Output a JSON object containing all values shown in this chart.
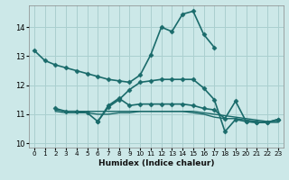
{
  "title": "",
  "xlabel": "Humidex (Indice chaleur)",
  "bg_color": "#cce8e8",
  "grid_color": "#aacfcf",
  "line_color": "#1a6b6b",
  "xlim": [
    -0.5,
    23.5
  ],
  "ylim": [
    9.85,
    14.75
  ],
  "yticks": [
    10,
    11,
    12,
    13,
    14
  ],
  "xticks": [
    0,
    1,
    2,
    3,
    4,
    5,
    6,
    7,
    8,
    9,
    10,
    11,
    12,
    13,
    14,
    15,
    16,
    17,
    18,
    19,
    20,
    21,
    22,
    23
  ],
  "series": [
    {
      "x": [
        0,
        1,
        2,
        3,
        4,
        5,
        6,
        7,
        8,
        9,
        10,
        11,
        12,
        13,
        14,
        15,
        16,
        17
      ],
      "y": [
        13.2,
        12.85,
        12.7,
        12.6,
        12.5,
        12.4,
        12.3,
        12.2,
        12.15,
        12.1,
        12.35,
        13.05,
        14.0,
        13.85,
        14.45,
        14.55,
        13.75,
        13.3
      ],
      "marker": "D",
      "markersize": 2.5,
      "linewidth": 1.2
    },
    {
      "x": [
        2,
        3,
        4,
        5,
        6,
        7,
        8,
        9,
        10,
        11,
        12,
        13,
        14,
        15,
        16,
        17,
        18,
        19,
        20,
        21,
        22,
        23
      ],
      "y": [
        11.15,
        11.1,
        11.1,
        11.1,
        11.1,
        11.1,
        11.1,
        11.1,
        11.1,
        11.1,
        11.1,
        11.1,
        11.1,
        11.1,
        11.05,
        11.0,
        10.95,
        10.9,
        10.85,
        10.8,
        10.75,
        10.75
      ],
      "marker": null,
      "markersize": 0,
      "linewidth": 1.0
    },
    {
      "x": [
        2,
        3,
        4,
        5,
        6,
        7,
        8,
        9,
        10,
        11,
        12,
        13,
        14,
        15,
        16,
        17,
        18,
        19,
        20,
        21,
        22,
        23
      ],
      "y": [
        11.1,
        11.05,
        11.05,
        11.05,
        11.0,
        11.0,
        11.05,
        11.05,
        11.1,
        11.1,
        11.1,
        11.1,
        11.1,
        11.05,
        11.0,
        10.9,
        10.85,
        10.85,
        10.8,
        10.75,
        10.72,
        10.72
      ],
      "marker": null,
      "markersize": 0,
      "linewidth": 1.0
    },
    {
      "x": [
        2,
        3,
        4,
        5,
        6,
        7,
        8,
        9,
        10,
        11,
        12,
        13,
        14,
        15,
        16,
        17,
        18,
        19,
        20,
        21,
        22,
        23
      ],
      "y": [
        11.2,
        11.1,
        11.1,
        11.05,
        10.75,
        11.3,
        11.55,
        11.3,
        11.35,
        11.35,
        11.35,
        11.35,
        11.35,
        11.3,
        11.2,
        11.15,
        10.85,
        11.45,
        10.75,
        10.72,
        10.72,
        10.82
      ],
      "marker": "D",
      "markersize": 2.5,
      "linewidth": 1.2
    },
    {
      "x": [
        6,
        7,
        8,
        9,
        10,
        11,
        12,
        13,
        14,
        15,
        16,
        17,
        18,
        19,
        20,
        21,
        22,
        23
      ],
      "y": [
        10.75,
        11.25,
        11.5,
        11.85,
        12.1,
        12.15,
        12.2,
        12.2,
        12.2,
        12.2,
        11.9,
        11.5,
        10.4,
        10.82,
        10.75,
        10.72,
        10.72,
        10.82
      ],
      "marker": "D",
      "markersize": 2.5,
      "linewidth": 1.2
    }
  ]
}
